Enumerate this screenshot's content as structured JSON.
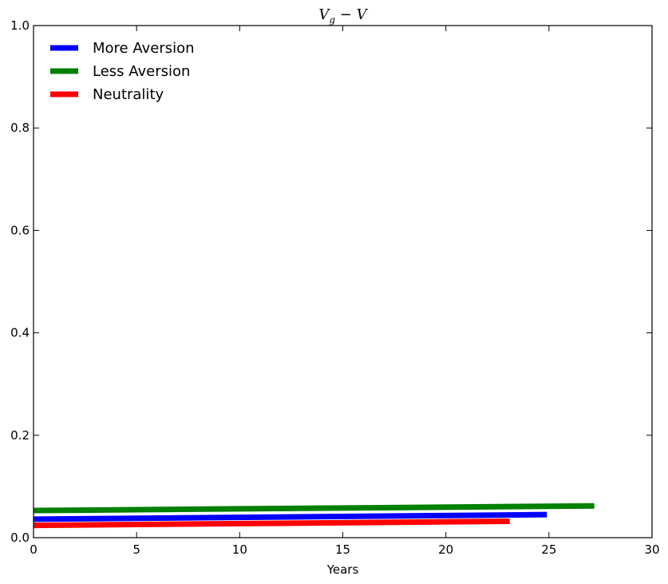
{
  "chart_data": {
    "type": "line",
    "title_main": "V",
    "title_sub": "g",
    "title_rest": " − V",
    "xlabel": "Years",
    "ylabel": "",
    "xlim": [
      0,
      30
    ],
    "ylim": [
      0,
      1.0
    ],
    "xticks": [
      0,
      5,
      10,
      15,
      20,
      25,
      30
    ],
    "xtick_labels": [
      "0",
      "5",
      "10",
      "15",
      "20",
      "25",
      "30"
    ],
    "yticks": [
      0,
      0.2,
      0.4,
      0.6,
      0.8,
      1.0
    ],
    "ytick_labels": [
      "0.0",
      "0.2",
      "0.4",
      "0.6",
      "0.8",
      "1.0"
    ],
    "grid": false,
    "legend_position": "top-left",
    "series": [
      {
        "name": "More Aversion",
        "color": "#0000ff",
        "x": [
          0,
          24.9
        ],
        "y": [
          0.036,
          0.045
        ]
      },
      {
        "name": "Less Aversion",
        "color": "#008000",
        "x": [
          0,
          27.2
        ],
        "y": [
          0.053,
          0.062
        ]
      },
      {
        "name": "Neutrality",
        "color": "#ff0000",
        "x": [
          0,
          23.1
        ],
        "y": [
          0.024,
          0.032
        ]
      }
    ]
  }
}
